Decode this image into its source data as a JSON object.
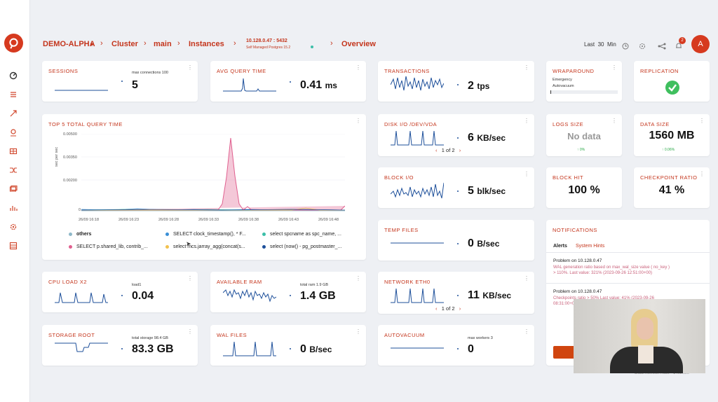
{
  "breadcrumb": {
    "cluster_name": "DEMO-ALPHA",
    "cluster": "Cluster",
    "main": "main",
    "instances": "Instances",
    "host": "10.128.0.47 : 5432",
    "host_sub": "Self Managed Postgres 15.2",
    "overview": "Overview"
  },
  "header": {
    "time_last": "Last",
    "time_value": "30",
    "time_unit": "Min",
    "notif_count": "2",
    "avatar": "A"
  },
  "cards": {
    "sessions": {
      "title": "SESSIONS",
      "sub": "max connections 100",
      "value": "5"
    },
    "avg_query": {
      "title": "AVG QUERY TIME",
      "value": "0.41",
      "unit": "ms"
    },
    "transactions": {
      "title": "TRANSACTIONS",
      "value": "2",
      "unit": "tps"
    },
    "wraparound": {
      "title": "WRAPAROUND",
      "line1": "Emergency",
      "line2": "Autovacuum"
    },
    "replication": {
      "title": "REPLICATION"
    },
    "top5": {
      "title": "TOP 5 TOTAL QUERY TIME"
    },
    "disk_io": {
      "title": "DISK I/O  /DEV/VDA",
      "value": "6",
      "unit": "KB/sec",
      "pager": "1 of 2"
    },
    "logs_size": {
      "title": "LOGS SIZE",
      "value": "No data",
      "delta": "↑ 0%"
    },
    "data_size": {
      "title": "DATA SIZE",
      "value": "1560 MB",
      "delta": "↑ 0.06%"
    },
    "block_io": {
      "title": "BLOCK I/O",
      "value": "5",
      "unit": "blk/sec"
    },
    "block_hit": {
      "title": "BLOCK HIT",
      "value": "100 %"
    },
    "checkpoint": {
      "title": "CHECKPOINT RATIO",
      "value": "41 %"
    },
    "temp_files": {
      "title": "TEMP FILES",
      "value": "0",
      "unit": "B/sec"
    },
    "cpu": {
      "title": "CPU LOAD X2",
      "sub": "load1",
      "value": "0.04"
    },
    "ram": {
      "title": "AVAILABLE RAM",
      "sub": "total ram 1.9 GB",
      "value": "1.4",
      "unit": "GB"
    },
    "network": {
      "title": "NETWORK  ETH0",
      "value": "11",
      "unit": "KB/sec",
      "pager": "1 of 2"
    },
    "storage": {
      "title": "STORAGE  ROOT",
      "sub": "total storage 98.4 GB",
      "value": "83.3",
      "unit": "GB"
    },
    "wal": {
      "title": "WAL FILES",
      "value": "0",
      "unit": "B/sec"
    },
    "autovacuum": {
      "title": "AUTOVACUUM",
      "sub": "max workers 3",
      "value": "0"
    }
  },
  "notifications": {
    "title": "NOTIFICATIONS",
    "tab_alerts": "Alerts",
    "tab_system": "System Hints",
    "items": [
      {
        "head": "Problem on 10.128.0.47",
        "line1": "WAL generation ratio based on max_wal_size value ( no_key )",
        "line2": "> 110%. Last value: 321% (2023-09-26 12:51:00+00)"
      },
      {
        "head": "Problem on 10.128.0.47",
        "line1": "Checkpoints ratio > 50% Last value: 41% (2023-09-26",
        "line2": "08:31:00+00)"
      }
    ],
    "footer": "Data Refresh Rate · 1 Minute"
  },
  "chart_data": {
    "type": "line",
    "title": "TOP 5 TOTAL QUERY TIME",
    "ylabel": "sec per sec",
    "ylim": [
      0,
      0.0055
    ],
    "yticks": [
      "0",
      "0.00200",
      "0.00350",
      "0.00500"
    ],
    "x": [
      "26/09 16:18",
      "26/09 16:23",
      "26/09 16:28",
      "26/09 16:33",
      "26/09 16:38",
      "26/09 16:43",
      "26/09 16:48"
    ],
    "series": [
      {
        "name": "others",
        "color": "#8fb8c9"
      },
      {
        "name": "SELECT clock_timestamp(), * F...",
        "color": "#3a8fd6"
      },
      {
        "name": "select spcname as spc_name, ...",
        "color": "#3cbfa8"
      },
      {
        "name": "SELECT p.shared_lib, contrib_...",
        "color": "#e0608f"
      },
      {
        "name": "select mcs.jarray_agg(concat(s...",
        "color": "#f2c14e"
      },
      {
        "name": "select (now() - pg_postmaster_...",
        "color": "#1d4f9a"
      }
    ]
  }
}
